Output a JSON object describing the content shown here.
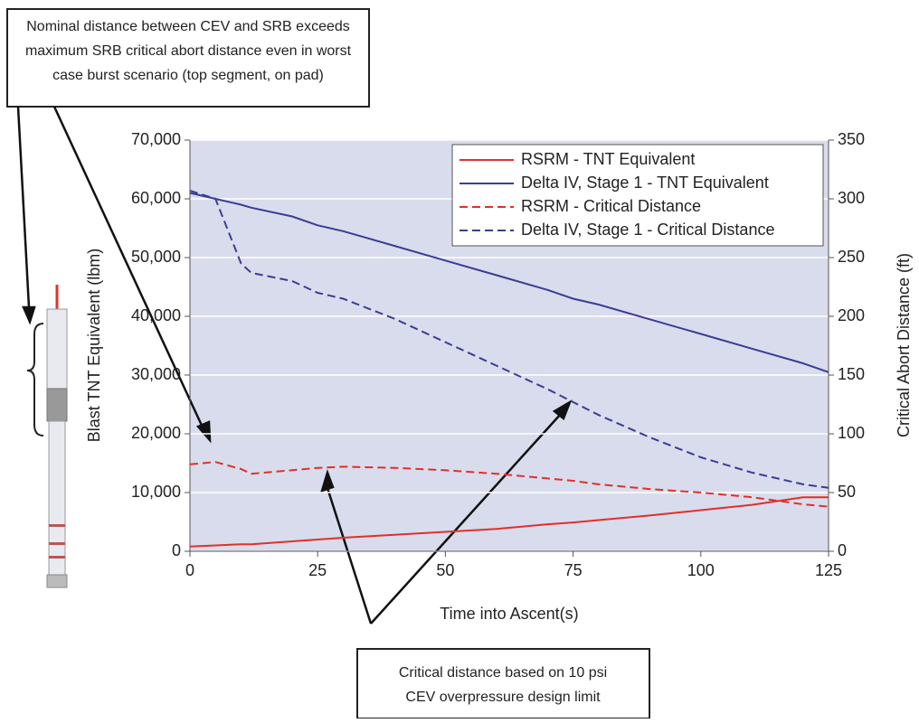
{
  "chart_data": {
    "type": "line",
    "x_label": "Time into Ascent(s)",
    "y_label": "Blast TNT Equivalent (lbm)",
    "y2_label": "Critical Abort Distance (ft)",
    "x": [
      0,
      5,
      10,
      12,
      20,
      25,
      30,
      40,
      50,
      60,
      70,
      75,
      80,
      90,
      100,
      110,
      120,
      125
    ],
    "series": [
      {
        "name": "RSRM - TNT Equivalent",
        "color": "#e0302a",
        "dash": false,
        "axis": "y",
        "values": [
          800,
          1000,
          1200,
          1200,
          1700,
          2000,
          2300,
          2800,
          3300,
          3800,
          4600,
          4900,
          5300,
          6100,
          7000,
          7900,
          9200,
          9200
        ]
      },
      {
        "name": "Delta IV, Stage 1 - TNT Equivalent",
        "color": "#3a3d96",
        "dash": false,
        "axis": "y",
        "values": [
          61000,
          60000,
          59000,
          58500,
          57000,
          55500,
          54500,
          52000,
          49500,
          47000,
          44500,
          43000,
          42000,
          39500,
          37000,
          34500,
          32000,
          30500
        ]
      },
      {
        "name": "RSRM - Critical Distance",
        "color": "#e0302a",
        "dash": true,
        "axis": "y2",
        "values": [
          74,
          76,
          70,
          66,
          69,
          71,
          72,
          71,
          69,
          66,
          62,
          60,
          57,
          53,
          50,
          46,
          40,
          38
        ]
      },
      {
        "name": "Delta IV, Stage 1 - Critical Distance",
        "color": "#3a3d96",
        "dash": true,
        "axis": "y2",
        "values": [
          307,
          300,
          245,
          237,
          230,
          220,
          215,
          198,
          178,
          158,
          138,
          127,
          116,
          97,
          80,
          67,
          57,
          54
        ]
      }
    ],
    "xlim": [
      0,
      125
    ],
    "xticks": [
      0,
      25,
      50,
      75,
      100,
      125
    ],
    "ylim": [
      0,
      70000
    ],
    "yticks": [
      0,
      {
        "value": 10000,
        "label": "10,000"
      },
      {
        "value": 20000,
        "label": "20,000"
      },
      {
        "value": 30000,
        "label": "30,000"
      },
      {
        "value": 40000,
        "label": "40,000"
      },
      {
        "value": 50000,
        "label": "50,000"
      },
      {
        "value": 60000,
        "label": "60,000"
      },
      {
        "value": 70000,
        "label": "70,000"
      }
    ],
    "y2lim": [
      0,
      350
    ],
    "y2ticks": [
      0,
      50,
      100,
      150,
      200,
      250,
      300,
      350
    ],
    "grid": true,
    "legend": "upper right",
    "annotations": [
      {
        "lines": [
          "Nominal distance between CEV and SRB exceeds",
          "maximum SRB critical abort distance even in worst",
          "case burst scenario (top segment, on pad)"
        ]
      },
      {
        "lines": [
          "Critical distance based on 10 psi",
          "CEV overpressure design limit"
        ]
      }
    ]
  }
}
